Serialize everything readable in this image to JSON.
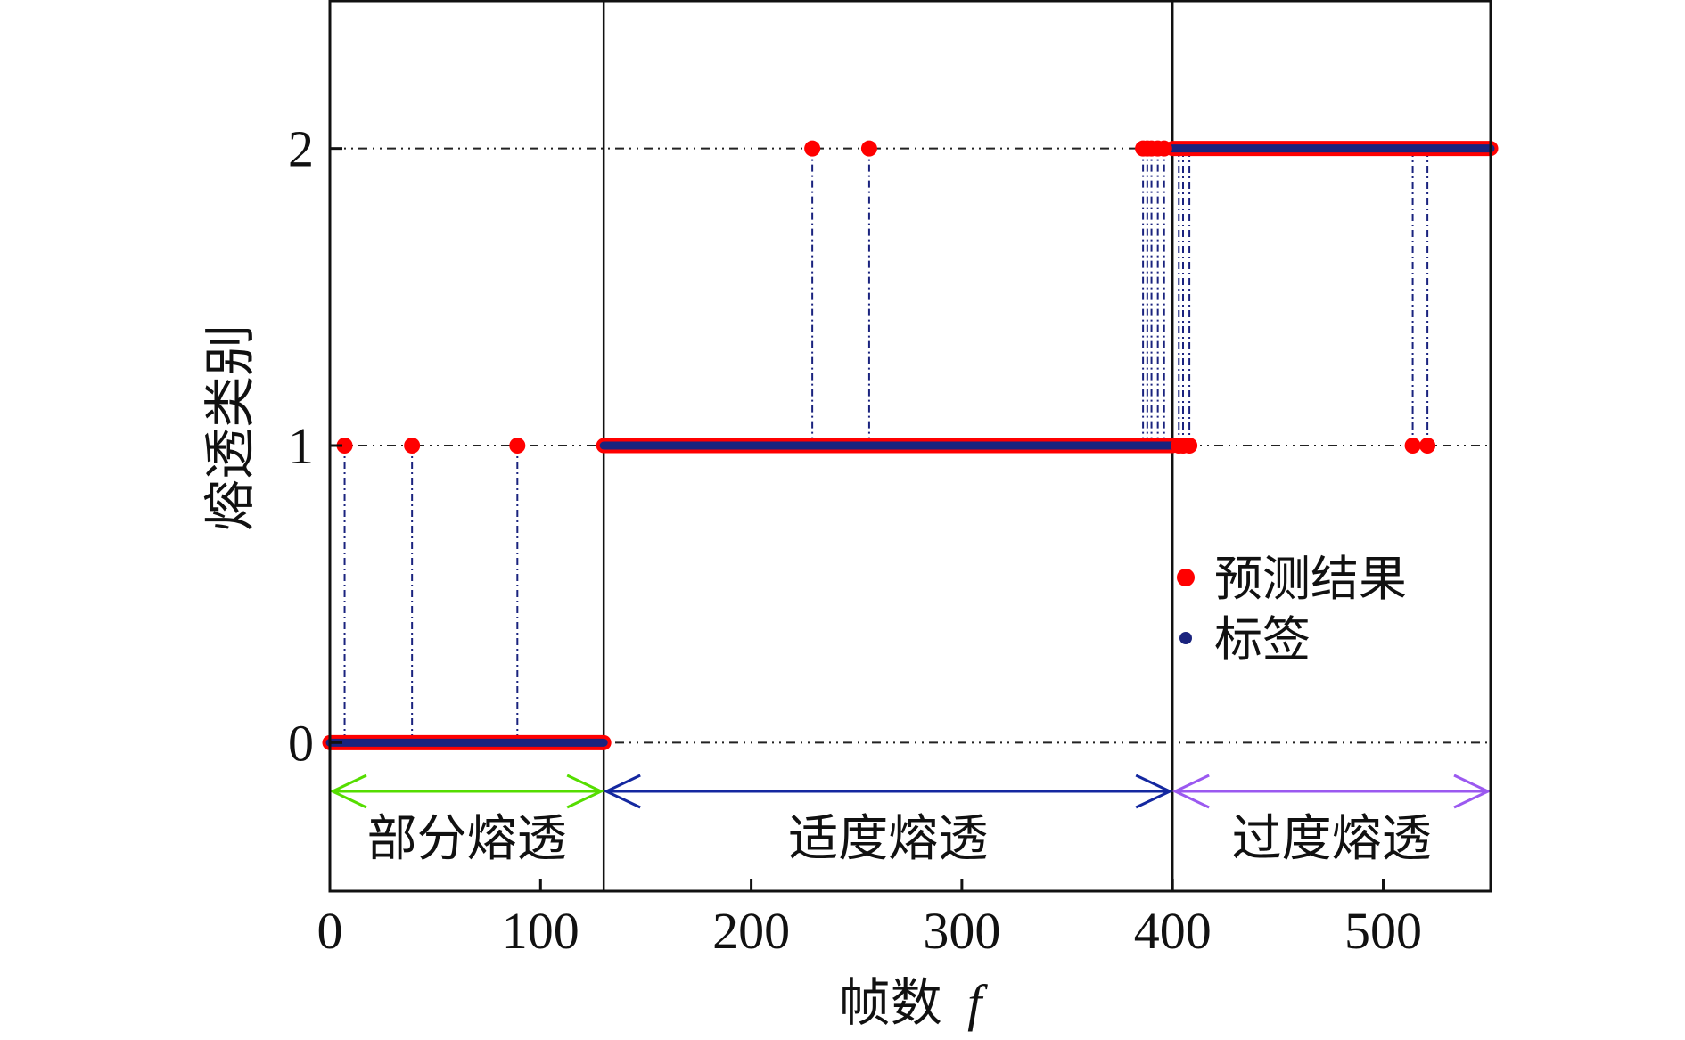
{
  "chart_data": {
    "type": "scatter",
    "xlabel": "帧数",
    "xlabel_var": "f",
    "ylabel": "熔透类别",
    "xlim": [
      0,
      551
    ],
    "ylim": [
      -0.5,
      2.5
    ],
    "xticks": [
      "0",
      "100",
      "200",
      "300",
      "400",
      "500"
    ],
    "yticks": [
      "0",
      "1",
      "2"
    ],
    "grid": "dash-dot horizontal lines at y = 0, 1, 2",
    "legend_position": "right-center",
    "series": [
      {
        "name": "预测结果",
        "color": "#ff0000",
        "marker": "circle",
        "segments": [
          {
            "x_from": 0,
            "x_to": 130,
            "y": 0
          },
          {
            "x_from": 130,
            "x_to": 400,
            "y": 1
          },
          {
            "x_from": 400,
            "x_to": 551,
            "y": 2
          }
        ],
        "outliers": [
          {
            "x": 7,
            "y": 1
          },
          {
            "x": 39,
            "y": 1
          },
          {
            "x": 89,
            "y": 1
          },
          {
            "x": 229,
            "y": 2
          },
          {
            "x": 256,
            "y": 2
          },
          {
            "x": 386,
            "y": 2
          },
          {
            "x": 388,
            "y": 2
          },
          {
            "x": 390,
            "y": 2
          },
          {
            "x": 393,
            "y": 2
          },
          {
            "x": 396,
            "y": 2
          },
          {
            "x": 403,
            "y": 1
          },
          {
            "x": 405,
            "y": 1
          },
          {
            "x": 408,
            "y": 1
          },
          {
            "x": 514,
            "y": 1
          },
          {
            "x": 521,
            "y": 1
          }
        ]
      },
      {
        "name": "标签",
        "color": "#1a237e",
        "marker": "circle",
        "segments": [
          {
            "x_from": 0,
            "x_to": 130,
            "y": 0
          },
          {
            "x_from": 130,
            "x_to": 400,
            "y": 1
          },
          {
            "x_from": 400,
            "x_to": 551,
            "y": 2
          }
        ]
      }
    ],
    "regions": [
      {
        "label": "部分熔透",
        "x_from": 0,
        "x_to": 130,
        "color": "#55dd00"
      },
      {
        "label": "适度熔透",
        "x_from": 130,
        "x_to": 400,
        "color": "#1428a0"
      },
      {
        "label": "过度熔透",
        "x_from": 400,
        "x_to": 551,
        "color": "#9b59f0"
      }
    ],
    "boundaries": [
      130,
      400
    ]
  }
}
